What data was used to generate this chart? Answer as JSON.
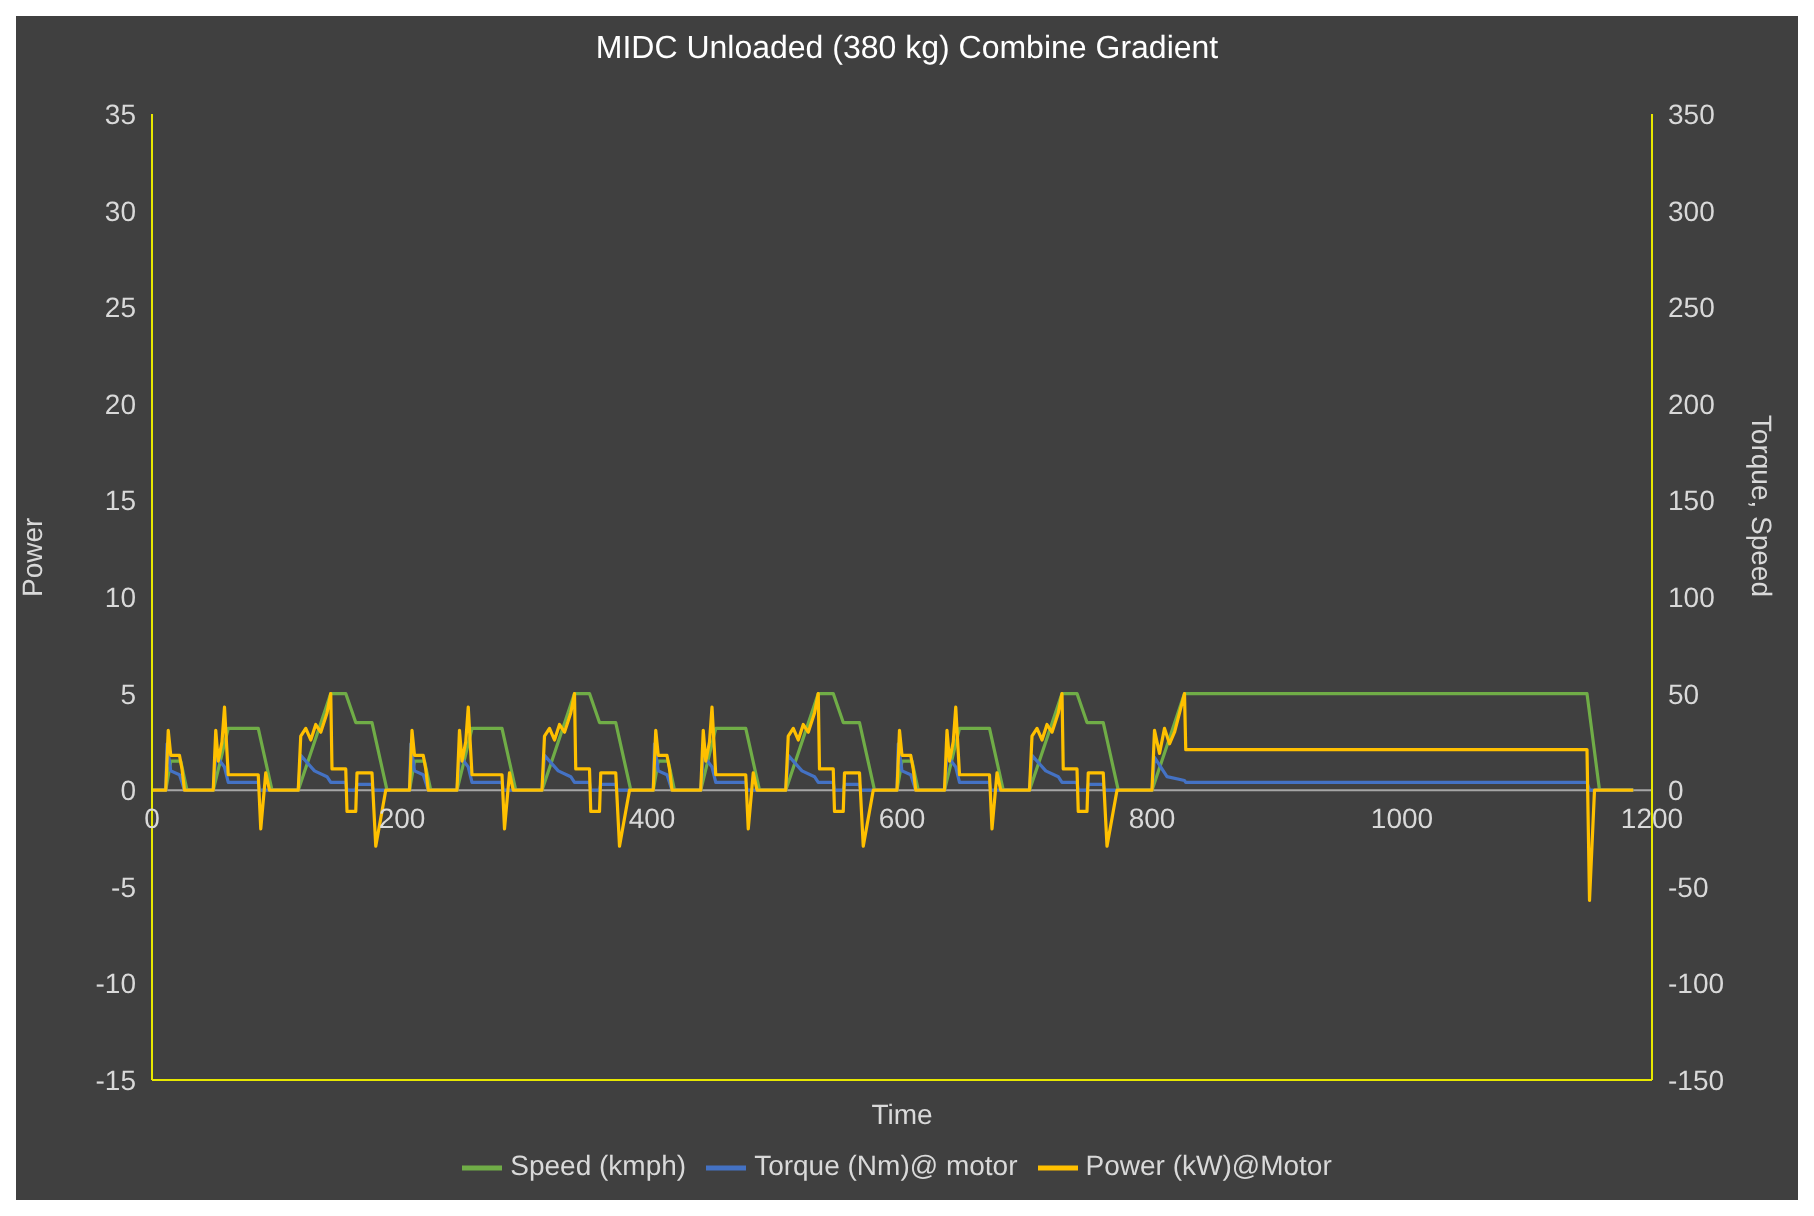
{
  "chart_data": {
    "type": "line",
    "title": "MIDC Unloaded (380 kg) Combine Gradient",
    "xlabel": "Time",
    "ylabel": "Power",
    "y2label": "Torque, Speed",
    "xlim": [
      0,
      1200
    ],
    "xticks": [
      0,
      200,
      400,
      600,
      800,
      1000,
      1200
    ],
    "ylim": [
      -15,
      35
    ],
    "yticks": [
      -15,
      -10,
      -5,
      0,
      5,
      10,
      15,
      20,
      25,
      30,
      35
    ],
    "y2lim": [
      -150,
      350
    ],
    "y2ticks": [
      -150,
      -100,
      -50,
      0,
      50,
      100,
      150,
      200,
      250,
      300,
      350
    ],
    "legend": "bottom",
    "marker": "none",
    "line_style": "solid",
    "series": [
      {
        "name": "Speed (kmph)",
        "color": "#70ad47",
        "axis": "y2",
        "x": [
          0,
          11,
          15,
          23,
          28,
          49,
          61,
          85,
          96,
          117,
          143,
          155,
          163,
          176,
          188,
          195,
          206,
          210,
          218,
          223,
          244,
          256,
          280,
          291,
          312,
          338,
          350,
          358,
          371,
          383,
          390,
          401,
          405,
          413,
          418,
          439,
          451,
          475,
          486,
          507,
          533,
          545,
          553,
          566,
          578,
          585,
          596,
          600,
          608,
          613,
          634,
          646,
          670,
          681,
          702,
          728,
          740,
          748,
          761,
          773,
          780,
          800,
          826,
          1148,
          1158,
          1185
        ],
        "values": [
          0,
          0,
          15,
          15,
          0,
          0,
          32,
          32,
          0,
          0,
          50,
          50,
          35,
          35,
          0,
          0,
          0,
          15,
          15,
          0,
          0,
          32,
          32,
          0,
          0,
          50,
          50,
          35,
          35,
          0,
          0,
          0,
          15,
          15,
          0,
          0,
          32,
          32,
          0,
          0,
          50,
          50,
          35,
          35,
          0,
          0,
          0,
          15,
          15,
          0,
          0,
          32,
          32,
          0,
          0,
          50,
          50,
          35,
          35,
          0,
          0,
          0,
          50,
          50,
          0,
          0
        ]
      },
      {
        "name": "Torque (Nm)@ motor",
        "color": "#4472c4",
        "axis": "y2",
        "x": [
          0,
          11,
          12,
          15,
          22,
          26,
          49,
          51,
          58,
          61,
          85,
          86,
          117,
          119,
          130,
          140,
          143,
          155,
          156,
          163,
          164,
          176,
          177,
          195,
          206,
          207,
          210,
          217,
          221,
          244,
          246,
          253,
          256,
          280,
          281,
          312,
          314,
          325,
          335,
          338,
          350,
          351,
          358,
          359,
          371,
          372,
          390,
          401,
          402,
          405,
          412,
          416,
          439,
          441,
          448,
          451,
          475,
          476,
          507,
          509,
          520,
          530,
          533,
          545,
          546,
          553,
          554,
          566,
          567,
          585,
          596,
          597,
          600,
          607,
          611,
          634,
          636,
          643,
          646,
          670,
          671,
          702,
          704,
          715,
          725,
          728,
          740,
          741,
          748,
          749,
          761,
          762,
          780,
          800,
          802,
          812,
          826,
          827,
          1148,
          1150,
          1185
        ],
        "values": [
          0,
          0,
          24,
          10,
          8,
          0,
          0,
          18,
          12,
          4,
          4,
          0,
          0,
          18,
          10,
          7,
          4,
          4,
          0,
          0,
          3,
          3,
          0,
          0,
          0,
          24,
          10,
          8,
          0,
          0,
          18,
          12,
          4,
          4,
          0,
          0,
          18,
          10,
          7,
          4,
          4,
          0,
          0,
          3,
          3,
          0,
          0,
          0,
          24,
          10,
          8,
          0,
          0,
          18,
          12,
          4,
          4,
          0,
          0,
          18,
          10,
          7,
          4,
          4,
          0,
          0,
          3,
          3,
          0,
          0,
          0,
          24,
          10,
          8,
          0,
          0,
          18,
          12,
          4,
          4,
          0,
          0,
          18,
          10,
          7,
          4,
          4,
          0,
          0,
          3,
          3,
          0,
          0,
          0,
          17,
          7,
          5,
          4,
          4,
          0,
          0
        ]
      },
      {
        "name": "Power (kW)@Motor",
        "color": "#ffc000",
        "axis": "y",
        "x": [
          0,
          11,
          13,
          15,
          22,
          24,
          26,
          49,
          51,
          53,
          56,
          58,
          61,
          85,
          87,
          91,
          94,
          117,
          119,
          123,
          127,
          131,
          135,
          140,
          143,
          144,
          155,
          156,
          163,
          164,
          176,
          179,
          187,
          195,
          206,
          208,
          210,
          217,
          219,
          221,
          244,
          246,
          248,
          251,
          253,
          256,
          280,
          282,
          286,
          289,
          312,
          314,
          318,
          322,
          326,
          330,
          335,
          338,
          339,
          350,
          351,
          358,
          359,
          371,
          374,
          382,
          390,
          401,
          403,
          405,
          412,
          414,
          416,
          439,
          441,
          443,
          446,
          448,
          451,
          475,
          477,
          481,
          484,
          507,
          509,
          513,
          517,
          521,
          525,
          530,
          533,
          534,
          545,
          546,
          553,
          554,
          566,
          569,
          577,
          585,
          596,
          598,
          600,
          607,
          609,
          611,
          634,
          636,
          638,
          641,
          643,
          646,
          670,
          672,
          676,
          679,
          702,
          704,
          708,
          712,
          716,
          720,
          725,
          728,
          729,
          740,
          741,
          748,
          749,
          761,
          764,
          772,
          780,
          800,
          802,
          806,
          810,
          814,
          818,
          826,
          827,
          1148,
          1150,
          1154,
          1185
        ],
        "values": [
          0,
          0,
          3.1,
          1.8,
          1.8,
          1.1,
          0,
          0,
          3.1,
          1.5,
          2.5,
          4.3,
          0.8,
          0.8,
          -2.0,
          0.9,
          0,
          0,
          2.8,
          3.2,
          2.6,
          3.4,
          3.0,
          4.0,
          5.0,
          1.1,
          1.1,
          -1.1,
          -1.1,
          0.9,
          0.9,
          -2.9,
          0,
          0,
          0,
          3.1,
          1.8,
          1.8,
          1.1,
          0,
          0,
          3.1,
          1.5,
          2.5,
          4.3,
          0.8,
          0.8,
          -2.0,
          0.9,
          0,
          0,
          2.8,
          3.2,
          2.6,
          3.4,
          3.0,
          4.0,
          5.0,
          1.1,
          1.1,
          -1.1,
          -1.1,
          0.9,
          0.9,
          -2.9,
          0,
          0,
          0,
          3.1,
          1.8,
          1.8,
          1.1,
          0,
          0,
          3.1,
          1.5,
          2.5,
          4.3,
          0.8,
          0.8,
          -2.0,
          0.9,
          0,
          0,
          2.8,
          3.2,
          2.6,
          3.4,
          3.0,
          4.0,
          5.0,
          1.1,
          1.1,
          -1.1,
          -1.1,
          0.9,
          0.9,
          -2.9,
          0,
          0,
          0,
          3.1,
          1.8,
          1.8,
          1.1,
          0,
          0,
          3.1,
          1.5,
          2.5,
          4.3,
          0.8,
          0.8,
          -2.0,
          0.9,
          0,
          0,
          2.8,
          3.2,
          2.6,
          3.4,
          3.0,
          4.0,
          5.0,
          1.1,
          1.1,
          -1.1,
          -1.1,
          0.9,
          0.9,
          -2.9,
          0,
          0,
          0,
          3.1,
          1.9,
          3.2,
          2.4,
          3.0,
          5.0,
          2.1,
          2.1,
          -5.7,
          0,
          0
        ]
      }
    ]
  }
}
